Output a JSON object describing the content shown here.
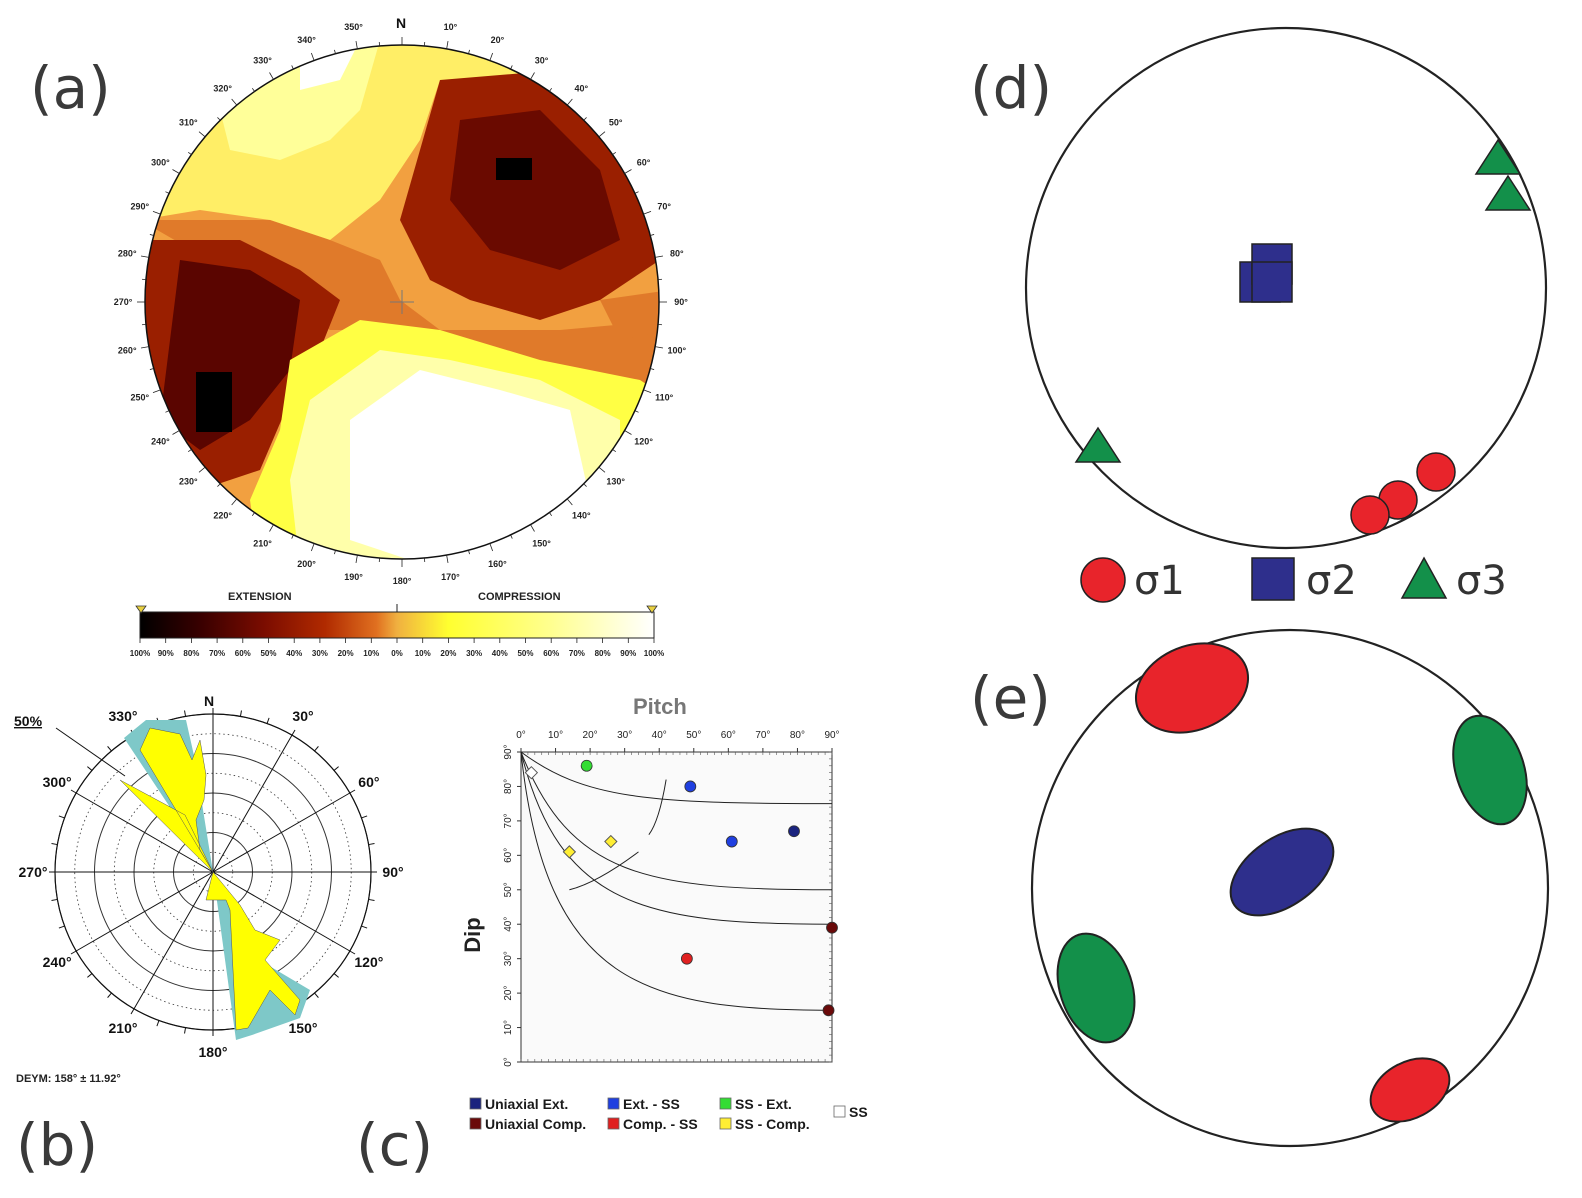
{
  "panels": {
    "a": {
      "label": "(a)",
      "north": "N",
      "azimuth_labels": [
        "10°",
        "20°",
        "30°",
        "40°",
        "50°",
        "60°",
        "70°",
        "80°",
        "90°",
        "100°",
        "110°",
        "120°",
        "130°",
        "140°",
        "150°",
        "160°",
        "170°",
        "180°",
        "190°",
        "200°",
        "210°",
        "220°",
        "230°",
        "240°",
        "250°",
        "260°",
        "270°",
        "280°",
        "290°",
        "300°",
        "310°",
        "320°",
        "330°",
        "340°",
        "350°"
      ],
      "colorbar": {
        "left_title": "EXTENSION",
        "right_title": "COMPRESSION",
        "ticks": [
          "100%",
          "90%",
          "80%",
          "70%",
          "60%",
          "50%",
          "40%",
          "30%",
          "20%",
          "10%",
          "0%",
          "10%",
          "20%",
          "30%",
          "40%",
          "50%",
          "60%",
          "70%",
          "80%",
          "90%",
          "100%"
        ],
        "colors": [
          "#000000",
          "#3a0000",
          "#6a0a00",
          "#9a2000",
          "#c84010",
          "#e8a050",
          "#ffff40",
          "#ffff90",
          "#ffffff"
        ]
      }
    },
    "b": {
      "label": "(b)",
      "north": "N",
      "scale_label": "50%",
      "angle_labels": [
        "30°",
        "60°",
        "90°",
        "120°",
        "150°",
        "180°",
        "210°",
        "240°",
        "270°",
        "300°",
        "330°"
      ],
      "caption": "DEYM: 158° ± 11.92°",
      "colors": {
        "petal": "#ffff00",
        "error": "#7ec8c8"
      }
    },
    "c": {
      "label": "(c)",
      "title_x": "Pitch",
      "title_y": "Dip",
      "x_ticks": [
        "0°",
        "10°",
        "20°",
        "30°",
        "40°",
        "50°",
        "60°",
        "70°",
        "80°",
        "90°"
      ],
      "y_ticks": [
        "0°",
        "10°",
        "20°",
        "30°",
        "40°",
        "50°",
        "60°",
        "70°",
        "80°",
        "90°"
      ],
      "points": [
        {
          "pitch": 3,
          "dip": 84,
          "cls": "ss"
        },
        {
          "pitch": 19,
          "dip": 86,
          "cls": "ss_ext"
        },
        {
          "pitch": 49,
          "dip": 80,
          "cls": "ext_ss"
        },
        {
          "pitch": 61,
          "dip": 64,
          "cls": "ext_ss"
        },
        {
          "pitch": 79,
          "dip": 67,
          "cls": "uni_ext"
        },
        {
          "pitch": 14,
          "dip": 61,
          "cls": "ss_comp"
        },
        {
          "pitch": 26,
          "dip": 64,
          "cls": "ss_comp"
        },
        {
          "pitch": 48,
          "dip": 30,
          "cls": "comp_ss"
        },
        {
          "pitch": 90,
          "dip": 39,
          "cls": "uni_comp"
        },
        {
          "pitch": 89,
          "dip": 15,
          "cls": "uni_comp"
        }
      ],
      "legend": [
        {
          "key": "uni_ext",
          "label": "Uniaxial Ext.",
          "color": "#1a237e"
        },
        {
          "key": "ext_ss",
          "label": "Ext. - SS",
          "color": "#1f3fe0"
        },
        {
          "key": "ss_ext",
          "label": "SS - Ext.",
          "color": "#33dd33"
        },
        {
          "key": "ss",
          "label": "SS",
          "color": "#ffffff"
        },
        {
          "key": "uni_comp",
          "label": "Uniaxial Comp.",
          "color": "#6a0a0a"
        },
        {
          "key": "comp_ss",
          "label": "Comp. - SS",
          "color": "#e02020"
        },
        {
          "key": "ss_comp",
          "label": "SS - Comp.",
          "color": "#ffee33"
        }
      ]
    },
    "d": {
      "label": "(d)",
      "legend": [
        {
          "label": "σ1",
          "color": "#e8242b"
        },
        {
          "label": "σ2",
          "color": "#2e2f8c"
        },
        {
          "label": "σ3",
          "color": "#13904a"
        }
      ]
    },
    "e": {
      "label": "(e)",
      "colors": {
        "red": "#e8242b",
        "green": "#13904a",
        "blue": "#2e2f8c"
      }
    }
  }
}
